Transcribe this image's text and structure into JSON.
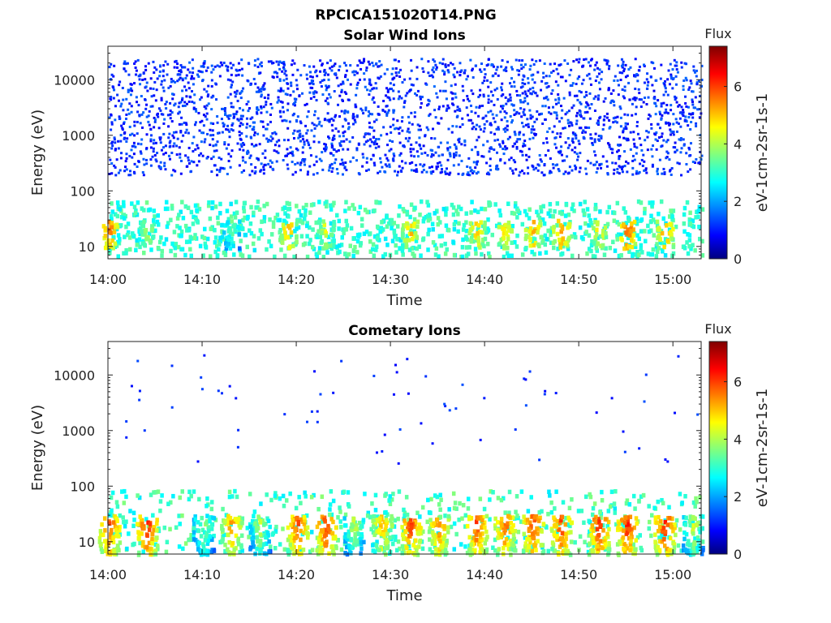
{
  "figure_title": "RPCICA151020T14.PNG",
  "chart_data": [
    {
      "type": "heatmap",
      "title": "Solar Wind Ions",
      "xlabel": "Time",
      "ylabel": "Energy (eV)",
      "x_ticks": [
        "14:00",
        "14:10",
        "14:20",
        "14:30",
        "14:40",
        "14:50",
        "15:00"
      ],
      "x_range": [
        "14:00",
        "15:03"
      ],
      "y_scale": "log",
      "y_ticks": [
        10,
        100,
        1000,
        10000
      ],
      "y_tick_labels": [
        "10",
        "100",
        "1000",
        "10000"
      ],
      "y_range": [
        6,
        40000
      ],
      "colorbar": {
        "label": "Flux",
        "unit": "eV-1cm-2sr-1s-1",
        "range": [
          0,
          7.4
        ],
        "ticks": [
          0,
          2,
          4,
          6
        ],
        "colormap": "jet"
      },
      "bursts_hhmm_flux": [
        [
          "14:00",
          6.0
        ],
        [
          "14:04",
          4.6
        ],
        [
          "14:13",
          4.0
        ],
        [
          "14:19",
          5.6
        ],
        [
          "14:23",
          5.0
        ],
        [
          "14:32",
          5.5
        ],
        [
          "14:39",
          5.4
        ],
        [
          "14:42",
          5.2
        ],
        [
          "14:45",
          5.6
        ],
        [
          "14:48",
          5.8
        ],
        [
          "14:52",
          5.2
        ],
        [
          "14:55",
          6.2
        ],
        [
          "14:59",
          5.8
        ]
      ],
      "description_levels": {
        "low_energy_band_eV": [
          10,
          60
        ],
        "background_scatter_eV": [
          200,
          30000
        ]
      }
    },
    {
      "type": "heatmap",
      "title": "Cometary Ions",
      "xlabel": "Time",
      "ylabel": "Energy (eV)",
      "x_ticks": [
        "14:00",
        "14:10",
        "14:20",
        "14:30",
        "14:40",
        "14:50",
        "15:00"
      ],
      "x_range": [
        "14:00",
        "15:03"
      ],
      "y_scale": "log",
      "y_ticks": [
        10,
        100,
        1000,
        10000
      ],
      "y_tick_labels": [
        "10",
        "100",
        "1000",
        "10000"
      ],
      "y_range": [
        6,
        40000
      ],
      "colorbar": {
        "label": "Flux",
        "unit": "eV-1cm-2sr-1s-1",
        "range": [
          0,
          7.4
        ],
        "ticks": [
          0,
          2,
          4,
          6
        ],
        "colormap": "jet"
      },
      "bursts_hhmm_flux": [
        [
          "14:00",
          6.4
        ],
        [
          "14:04",
          6.6
        ],
        [
          "14:10",
          4.4
        ],
        [
          "14:13",
          5.8
        ],
        [
          "14:16",
          4.6
        ],
        [
          "14:20",
          6.4
        ],
        [
          "14:23",
          6.6
        ],
        [
          "14:26",
          4.6
        ],
        [
          "14:29",
          5.6
        ],
        [
          "14:32",
          6.4
        ],
        [
          "14:35",
          6.0
        ],
        [
          "14:39",
          6.4
        ],
        [
          "14:42",
          6.2
        ],
        [
          "14:45",
          6.4
        ],
        [
          "14:48",
          6.4
        ],
        [
          "14:52",
          6.6
        ],
        [
          "14:55",
          6.6
        ],
        [
          "14:59",
          6.6
        ],
        [
          "15:02",
          4.8
        ]
      ],
      "description_levels": {
        "low_energy_band_eV": [
          8,
          80
        ],
        "sparse_scatter_eV": [
          300,
          30000
        ]
      }
    }
  ]
}
